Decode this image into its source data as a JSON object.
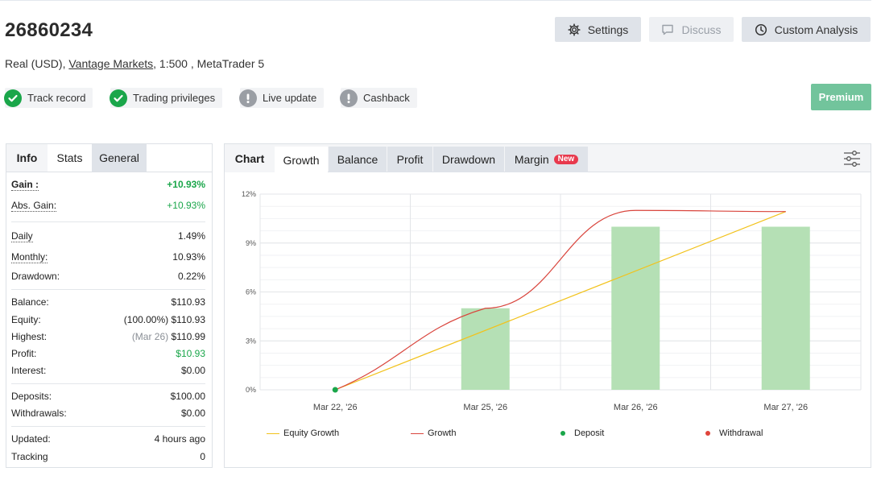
{
  "account": {
    "title": "26860234",
    "type_prefix": "Real (USD),",
    "broker": "Vantage Markets",
    "type_suffix": ", 1:500 , MetaTrader 5"
  },
  "header_buttons": {
    "settings": "Settings",
    "discuss": "Discuss",
    "custom_analysis": "Custom Analysis"
  },
  "badges": [
    {
      "label": "Track record",
      "status": "ok"
    },
    {
      "label": "Trading privileges",
      "status": "ok"
    },
    {
      "label": "Live update",
      "status": "warn"
    },
    {
      "label": "Cashback",
      "status": "warn"
    }
  ],
  "premium_label": "Premium",
  "colors": {
    "ok": "#1aa64a",
    "warn": "#9a9ea4",
    "premium": "#72c49c",
    "equity_growth": "#f2c21b",
    "growth": "#d9453d",
    "deposit": "#1aa64a",
    "withdrawal": "#e0453b",
    "bars": "#b5e0b5"
  },
  "left_tabs": {
    "info": "Info",
    "stats": "Stats",
    "general": "General"
  },
  "stats": {
    "gain": {
      "label": "Gain :",
      "value": "+10.93%"
    },
    "abs_gain": {
      "label": "Abs. Gain:",
      "value": "+10.93%"
    },
    "daily": {
      "label": "Daily",
      "value": "1.49%"
    },
    "monthly": {
      "label": "Monthly:",
      "value": "10.93%"
    },
    "drawdown": {
      "label": "Drawdown:",
      "value": "0.22%"
    },
    "balance": {
      "label": "Balance:",
      "value": "$110.93"
    },
    "equity": {
      "label": "Equity:",
      "pct": "(100.00%)",
      "value": "$110.93"
    },
    "highest": {
      "label": "Highest:",
      "date": "(Mar 26)",
      "value": "$110.99"
    },
    "profit": {
      "label": "Profit:",
      "value": "$10.93"
    },
    "interest": {
      "label": "Interest:",
      "value": "$0.00"
    },
    "deposits": {
      "label": "Deposits:",
      "value": "$100.00"
    },
    "withdrawals": {
      "label": "Withdrawals:",
      "value": "$0.00"
    },
    "updated": {
      "label": "Updated:",
      "value": "4 hours ago"
    },
    "tracking": {
      "label": "Tracking",
      "value": "0"
    }
  },
  "right_tabs": {
    "chart": "Chart",
    "growth": "Growth",
    "balance": "Balance",
    "profit": "Profit",
    "drawdown": "Drawdown",
    "margin": "Margin",
    "new_tag": "New"
  },
  "chart_data": {
    "type": "bar",
    "categories": [
      "Mar 22, '26",
      "Mar 25, '26",
      "Mar 26, '26",
      "Mar 27, '26"
    ],
    "y_ticks": [
      "0%",
      "3%",
      "6%",
      "9%",
      "12%"
    ],
    "ylim": [
      0,
      12
    ],
    "grid": true,
    "series": [
      {
        "name": "Equity Growth",
        "kind": "line",
        "x": [
          0,
          3
        ],
        "values": [
          0,
          10.93
        ]
      },
      {
        "name": "Growth",
        "kind": "curve",
        "x": [
          0,
          1,
          2,
          3
        ],
        "values": [
          0,
          5.0,
          11.0,
          10.93
        ]
      },
      {
        "name": "Deposit",
        "kind": "point",
        "x": [
          0
        ],
        "values": [
          0
        ]
      },
      {
        "name": "Withdrawal",
        "kind": "point",
        "x": [],
        "values": []
      },
      {
        "name": "bars",
        "kind": "bar",
        "x": [
          1,
          2,
          3
        ],
        "values": [
          5.0,
          10.0,
          10.0
        ]
      }
    ],
    "legend": [
      "Equity Growth",
      "Growth",
      "Deposit",
      "Withdrawal"
    ],
    "legend_position": "bottom"
  }
}
